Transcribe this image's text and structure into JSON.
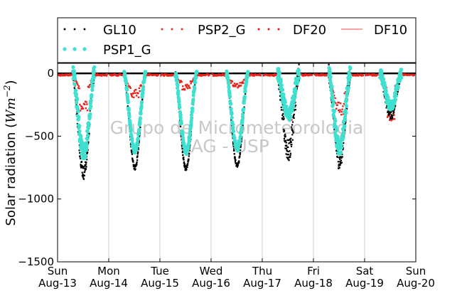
{
  "chart_data": {
    "type": "scatter",
    "ylabel_prefix": "Solar radiation (",
    "ylabel_unit": "Wm",
    "ylabel_exp": "−2",
    "ylabel_suffix": ")",
    "ylim": [
      -1500,
      80
    ],
    "yticks": [
      0,
      -500,
      -1000,
      -1500
    ],
    "ytick_labels": [
      "0",
      "−500",
      "−1000",
      "−1500"
    ],
    "x_day_start": 0,
    "x_day_end": 7,
    "xticks": [
      {
        "day": 0,
        "line1": "Sun",
        "line2": "Aug-13"
      },
      {
        "day": 1,
        "line1": "Mon",
        "line2": "Aug-14"
      },
      {
        "day": 2,
        "line1": "Tue",
        "line2": "Aug-15"
      },
      {
        "day": 3,
        "line1": "Wed",
        "line2": "Aug-16"
      },
      {
        "day": 4,
        "line1": "Thu",
        "line2": "Aug-17"
      },
      {
        "day": 5,
        "line1": "Fri",
        "line2": "Aug-18"
      },
      {
        "day": 6,
        "line1": "Sat",
        "line2": "Aug-19"
      },
      {
        "day": 7,
        "line1": "Sun",
        "line2": "Aug-20"
      }
    ],
    "grid_x": true,
    "legend_position": "top",
    "watermark": [
      "Grupo de Micrometeorologia",
      "IAG - USP"
    ],
    "series": [
      {
        "name": "GL10",
        "style": "dots",
        "color": "#000000",
        "days": [
          {
            "peak": -790,
            "noise": 55
          },
          {
            "peak": -750,
            "noise": 20
          },
          {
            "peak": -760,
            "noise": 20
          },
          {
            "peak": -735,
            "noise": 15
          },
          {
            "peak": -620,
            "noise": 90
          },
          {
            "peak": -700,
            "noise": 70
          },
          {
            "peak": -330,
            "noise": 40
          }
        ]
      },
      {
        "name": "PSP2_G",
        "style": "dots",
        "color": "#e8231c",
        "days": [
          {
            "diffuse": -130,
            "peak_dip": -320
          },
          {
            "diffuse": -150,
            "peak_dip": -200
          },
          {
            "diffuse": -90,
            "peak_dip": -140
          },
          {
            "diffuse": -100,
            "peak_dip": -110
          },
          {
            "diffuse": -280,
            "peak_dip": -380
          },
          {
            "diffuse": -250,
            "peak_dip": -330
          },
          {
            "diffuse": -150,
            "peak_dip": -380
          }
        ]
      },
      {
        "name": "DF20",
        "style": "dots",
        "color": "#ff0000"
      },
      {
        "name": "DF10",
        "style": "line",
        "color": "#ff6b6b"
      },
      {
        "name": "PSP1_G",
        "style": "dots",
        "color": "#40e0d0",
        "days": [
          {
            "peak": -630,
            "noise": 60
          },
          {
            "peak": -615,
            "noise": 20
          },
          {
            "peak": -620,
            "noise": 25
          },
          {
            "peak": -600,
            "noise": 20
          },
          {
            "peak": -330,
            "noise": 50
          },
          {
            "peak": -600,
            "noise": 60
          },
          {
            "peak": -260,
            "noise": 40
          }
        ]
      }
    ]
  }
}
